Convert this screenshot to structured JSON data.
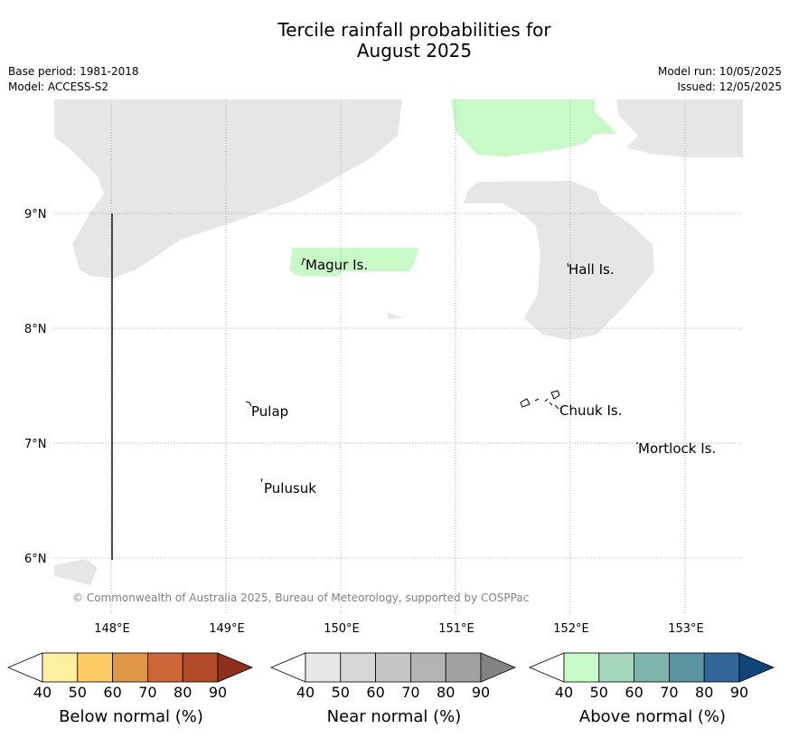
{
  "header": {
    "title_line1": "Tercile rainfall probabilities for",
    "title_line2": "August 2025",
    "base_period": "Base period: 1981-2018",
    "model": "Model: ACCESS-S2",
    "model_run": "Model run: 10/05/2025",
    "issued": "Issued: 12/05/2025"
  },
  "map": {
    "lat_labels": [
      "9°N",
      "8°N",
      "7°N",
      "6°N"
    ],
    "lon_labels": [
      "148°E",
      "149°E",
      "150°E",
      "151°E",
      "152°E",
      "153°E"
    ],
    "places": [
      "Magur Is.",
      "Hall Is.",
      "Pulap",
      "Chuuk Is.",
      "Mortlock Is.",
      "Pulusuk"
    ],
    "copyright": "© Commonwealth of Australia 2025, Bureau of Meteorology, supported by COSPPac",
    "colors": {
      "no_signal": "#e6e6e6",
      "above_normal_40_50": "#c8fac8",
      "grid": "#888888"
    }
  },
  "colorbars": [
    {
      "caption": "Below normal (%)",
      "ticks": [
        "40",
        "50",
        "60",
        "70",
        "80",
        "90"
      ],
      "colors": [
        "#fdeea0",
        "#fdcc65",
        "#e09647",
        "#cd6636",
        "#b34a27",
        "#8f301e"
      ]
    },
    {
      "caption": "Near normal (%)",
      "ticks": [
        "40",
        "50",
        "60",
        "70",
        "80",
        "90"
      ],
      "colors": [
        "#e6e6e6",
        "#d7d7d7",
        "#c5c5c5",
        "#b3b3b3",
        "#a1a1a1",
        "#838383"
      ]
    },
    {
      "caption": "Above normal (%)",
      "ticks": [
        "40",
        "50",
        "60",
        "70",
        "80",
        "90"
      ],
      "colors": [
        "#c8fac8",
        "#a4d6bc",
        "#7fb4ae",
        "#5b93a1",
        "#336698",
        "#10457a"
      ]
    }
  ]
}
